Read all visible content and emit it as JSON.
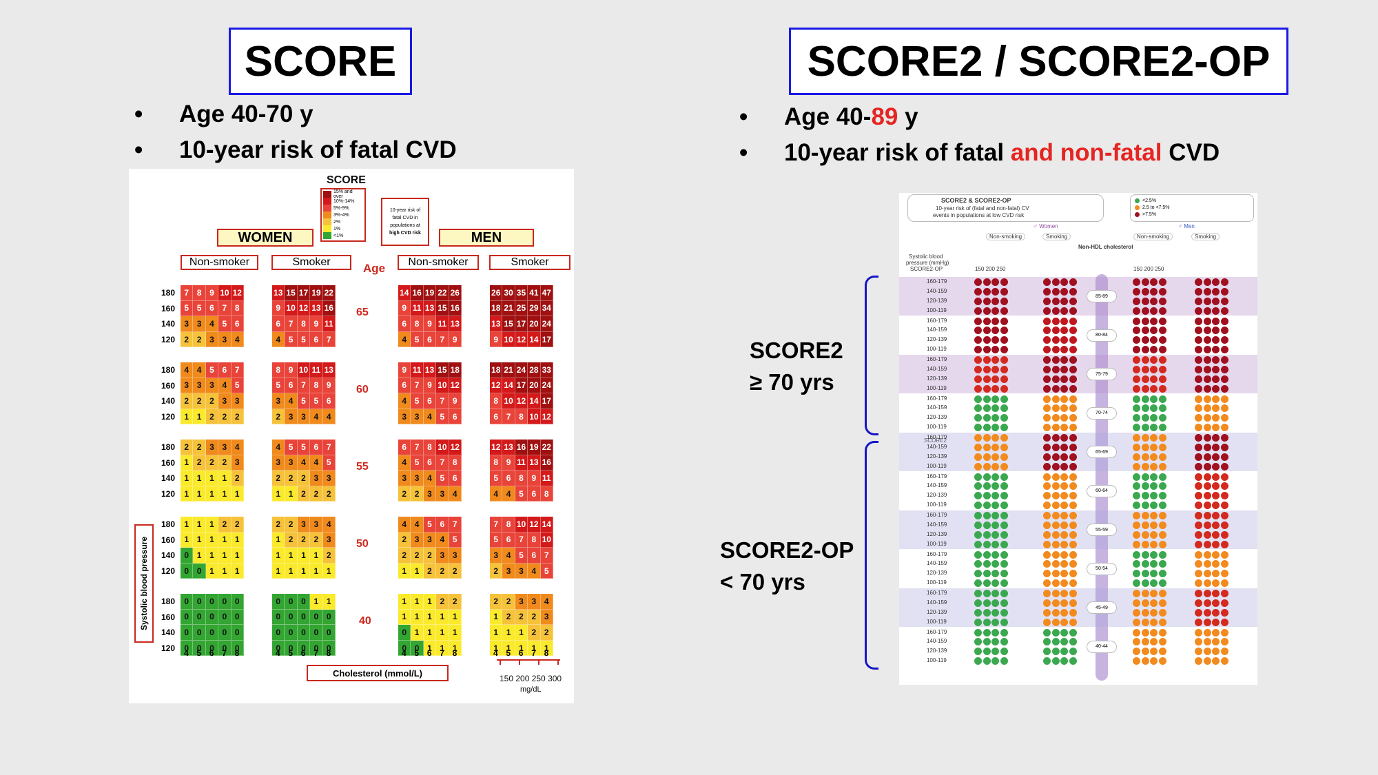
{
  "left": {
    "title": "SCORE",
    "bullets": [
      "Age 40-70 y",
      "10-year risk of fatal CVD"
    ]
  },
  "right": {
    "title": "SCORE2 / SCORE2-OP",
    "bullet1": {
      "pre": "Age 40-",
      "red": "89",
      "post": " y"
    },
    "bullet2": {
      "pre": "10-year risk of fatal ",
      "red": "and non-fatal",
      "post": " CVD"
    }
  },
  "brackets": {
    "upper": {
      "line1": "SCORE2",
      "line2": "≥ 70 yrs"
    },
    "lower": {
      "line1": "SCORE2-OP",
      "line2": "< 70 yrs"
    }
  },
  "score_chart": {
    "logo": "SCORE",
    "legend": [
      "15% and over",
      "10%-14%",
      "5%-9%",
      "3%-4%",
      "2%",
      "1%",
      "<1%"
    ],
    "legend_colors": [
      "#a01010",
      "#d4191a",
      "#e9443a",
      "#f08a1c",
      "#f6c23a",
      "#fbea2b",
      "#33a532"
    ],
    "risk_note": [
      "10-year risk of",
      "fatal CVD in",
      "populations at",
      "high CVD risk"
    ],
    "women_label": "WOMEN",
    "men_label": "MEN",
    "col_headers": [
      "Non-smoker",
      "Smoker",
      "Non-smoker",
      "Smoker"
    ],
    "age_header": "Age",
    "ages": [
      "65",
      "60",
      "55",
      "50",
      "40"
    ],
    "bp_values": [
      "180",
      "160",
      "140",
      "120"
    ],
    "chol_values": [
      "4",
      "5",
      "6",
      "7",
      "8"
    ],
    "chol_label": "Cholesterol (mmol/L)",
    "mgdl_values": "150 200 250 300",
    "mgdl_unit": "mg/dL",
    "sbp_label": "Systolic blood pressure",
    "blocks": [
      [
        [
          [
            7,
            8,
            9,
            10,
            12
          ],
          [
            5,
            5,
            6,
            7,
            8
          ],
          [
            3,
            3,
            4,
            5,
            6
          ],
          [
            2,
            2,
            3,
            3,
            4
          ]
        ],
        [
          [
            13,
            15,
            17,
            19,
            22
          ],
          [
            9,
            10,
            12,
            13,
            16
          ],
          [
            6,
            7,
            8,
            9,
            11
          ],
          [
            4,
            5,
            5,
            6,
            7
          ]
        ],
        [
          [
            14,
            16,
            19,
            22,
            26
          ],
          [
            9,
            11,
            13,
            15,
            16
          ],
          [
            6,
            8,
            9,
            11,
            13
          ],
          [
            4,
            5,
            6,
            7,
            9
          ]
        ],
        [
          [
            26,
            30,
            35,
            41,
            47
          ],
          [
            18,
            21,
            25,
            29,
            34
          ],
          [
            13,
            15,
            17,
            20,
            24
          ],
          [
            9,
            10,
            12,
            14,
            17
          ]
        ]
      ],
      [
        [
          [
            4,
            4,
            5,
            6,
            7
          ],
          [
            3,
            3,
            3,
            4,
            5
          ],
          [
            2,
            2,
            2,
            3,
            3
          ],
          [
            1,
            1,
            2,
            2,
            2
          ]
        ],
        [
          [
            8,
            9,
            10,
            11,
            13
          ],
          [
            5,
            6,
            7,
            8,
            9
          ],
          [
            3,
            4,
            5,
            5,
            6
          ],
          [
            2,
            3,
            3,
            4,
            4
          ]
        ],
        [
          [
            9,
            11,
            13,
            15,
            18
          ],
          [
            6,
            7,
            9,
            10,
            12
          ],
          [
            4,
            5,
            6,
            7,
            9
          ],
          [
            3,
            3,
            4,
            5,
            6
          ]
        ],
        [
          [
            18,
            21,
            24,
            28,
            33
          ],
          [
            12,
            14,
            17,
            20,
            24
          ],
          [
            8,
            10,
            12,
            14,
            17
          ],
          [
            6,
            7,
            8,
            10,
            12
          ]
        ]
      ],
      [
        [
          [
            2,
            2,
            3,
            3,
            4
          ],
          [
            1,
            2,
            2,
            2,
            3
          ],
          [
            1,
            1,
            1,
            1,
            2
          ],
          [
            1,
            1,
            1,
            1,
            1
          ]
        ],
        [
          [
            4,
            5,
            5,
            6,
            7
          ],
          [
            3,
            3,
            4,
            4,
            5
          ],
          [
            2,
            2,
            2,
            3,
            3
          ],
          [
            1,
            1,
            2,
            2,
            2
          ]
        ],
        [
          [
            6,
            7,
            8,
            10,
            12
          ],
          [
            4,
            5,
            6,
            7,
            8
          ],
          [
            3,
            3,
            4,
            5,
            6
          ],
          [
            2,
            2,
            3,
            3,
            4
          ]
        ],
        [
          [
            12,
            13,
            16,
            19,
            22
          ],
          [
            8,
            9,
            11,
            13,
            16
          ],
          [
            5,
            6,
            8,
            9,
            11
          ],
          [
            4,
            4,
            5,
            6,
            8
          ]
        ]
      ],
      [
        [
          [
            1,
            1,
            1,
            2,
            2
          ],
          [
            1,
            1,
            1,
            1,
            1
          ],
          [
            0,
            1,
            1,
            1,
            1
          ],
          [
            0,
            0,
            1,
            1,
            1
          ]
        ],
        [
          [
            2,
            2,
            3,
            3,
            4
          ],
          [
            1,
            2,
            2,
            2,
            3
          ],
          [
            1,
            1,
            1,
            1,
            2
          ],
          [
            1,
            1,
            1,
            1,
            1
          ]
        ],
        [
          [
            4,
            4,
            5,
            6,
            7
          ],
          [
            2,
            3,
            3,
            4,
            5
          ],
          [
            2,
            2,
            2,
            3,
            3
          ],
          [
            1,
            1,
            2,
            2,
            2
          ]
        ],
        [
          [
            7,
            8,
            10,
            12,
            14
          ],
          [
            5,
            6,
            7,
            8,
            10
          ],
          [
            3,
            4,
            5,
            6,
            7
          ],
          [
            2,
            3,
            3,
            4,
            5
          ]
        ]
      ],
      [
        [
          [
            0,
            0,
            0,
            0,
            0
          ],
          [
            0,
            0,
            0,
            0,
            0
          ],
          [
            0,
            0,
            0,
            0,
            0
          ],
          [
            0,
            0,
            0,
            0,
            0
          ]
        ],
        [
          [
            0,
            0,
            0,
            1,
            1
          ],
          [
            0,
            0,
            0,
            0,
            0
          ],
          [
            0,
            0,
            0,
            0,
            0
          ],
          [
            0,
            0,
            0,
            0,
            0
          ]
        ],
        [
          [
            1,
            1,
            1,
            2,
            2
          ],
          [
            1,
            1,
            1,
            1,
            1
          ],
          [
            0,
            1,
            1,
            1,
            1
          ],
          [
            0,
            0,
            1,
            1,
            1
          ]
        ],
        [
          [
            2,
            2,
            3,
            3,
            4
          ],
          [
            1,
            2,
            2,
            2,
            3
          ],
          [
            1,
            1,
            1,
            2,
            2
          ],
          [
            1,
            1,
            1,
            1,
            1
          ]
        ]
      ]
    ]
  },
  "score2_chart": {
    "title": "SCORE2 & SCORE2-OP",
    "subtitle": [
      "10-year risk of (fatal and non-fatal) CV",
      "events in populations at low CVD risk"
    ],
    "women_label": "Women",
    "men_label": "Men",
    "nonsmoking": "Non-smoking",
    "smoking": "Smoking",
    "nonhdl": "Non-HDL cholesterol",
    "sbp_header": [
      "Systolic blood",
      "pressure (mmHg)"
    ],
    "score2op_tag": "SCORE2-OP",
    "score2_tag": "SCORE2",
    "chol_cols": "150 200 250",
    "sbp_rows": [
      "160-179",
      "140-159",
      "120-139",
      "100-119"
    ],
    "ages": [
      "85-89",
      "80-84",
      "75-79",
      "70-74",
      "65-69",
      "60-64",
      "55-59",
      "50-54",
      "45-49",
      "40-44"
    ],
    "legend": [
      {
        "c": "#3aa84f",
        "t": "<2.5%"
      },
      {
        "c": "#f28a1e",
        "t": "2.5 to <7.5%"
      },
      {
        "c": "#a0101e",
        "t": ">7.5%"
      }
    ]
  }
}
